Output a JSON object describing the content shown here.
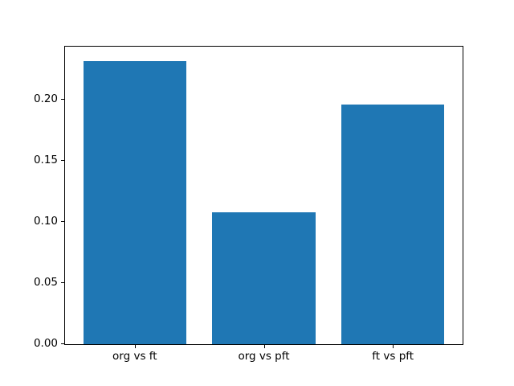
{
  "chart_data": {
    "type": "bar",
    "title": "",
    "xlabel": "",
    "ylabel": "",
    "categories": [
      "org vs ft",
      "org vs pft",
      "ft vs pft"
    ],
    "values": [
      0.232,
      0.108,
      0.196
    ],
    "ylim": [
      0,
      0.2436
    ],
    "ytick_values": [
      0,
      0.05,
      0.1,
      0.15,
      0.2
    ],
    "ytick_labels": [
      "0.00",
      "0.05",
      "0.10",
      "0.15",
      "0.20"
    ],
    "grid": false,
    "legend": false,
    "bar_color": "#1f77b4",
    "bar_width_fraction": 0.8,
    "x_margin_fraction": 0.05,
    "axis_color": "#000000",
    "background_color": "#ffffff"
  }
}
